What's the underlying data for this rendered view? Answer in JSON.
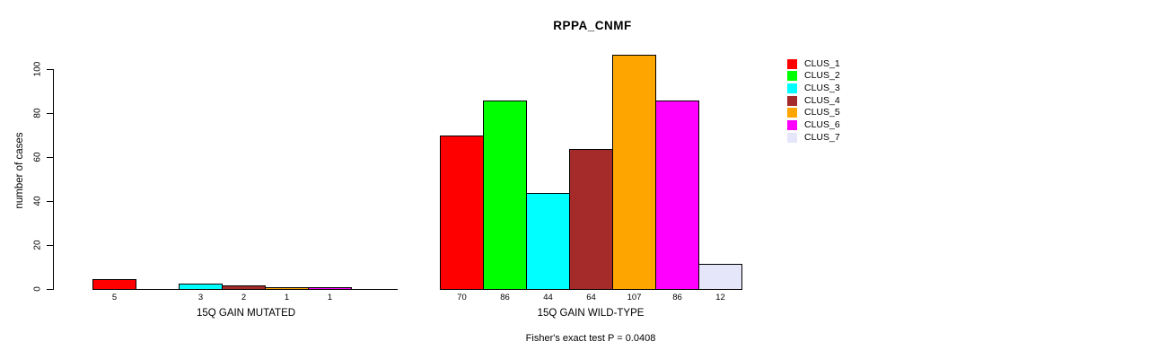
{
  "chart_data": {
    "type": "bar",
    "title": "RPPA_CNMF",
    "ylabel": "number of cases",
    "yticks": [
      0,
      20,
      40,
      60,
      80,
      100
    ],
    "ylim": [
      0,
      110
    ],
    "grid": false,
    "caption": "Fisher's exact test P = 0.0408",
    "clusters": [
      "CLUS_1",
      "CLUS_2",
      "CLUS_3",
      "CLUS_4",
      "CLUS_5",
      "CLUS_6",
      "CLUS_7"
    ],
    "colors": [
      "#ff0000",
      "#00ff00",
      "#00ffff",
      "#a52a2a",
      "#ffa500",
      "#ff00ff",
      "#e6e6fa"
    ],
    "bar_border_color": "#000000",
    "groups": [
      {
        "label": "15Q GAIN MUTATED",
        "values": [
          5,
          0,
          3,
          2,
          1,
          1,
          0
        ]
      },
      {
        "label": "15Q GAIN WILD-TYPE",
        "values": [
          70,
          86,
          44,
          64,
          107,
          86,
          12
        ]
      }
    ],
    "legend": {
      "position": "right",
      "entries": [
        "CLUS_1",
        "CLUS_2",
        "CLUS_3",
        "CLUS_4",
        "CLUS_5",
        "CLUS_6",
        "CLUS_7"
      ]
    }
  }
}
